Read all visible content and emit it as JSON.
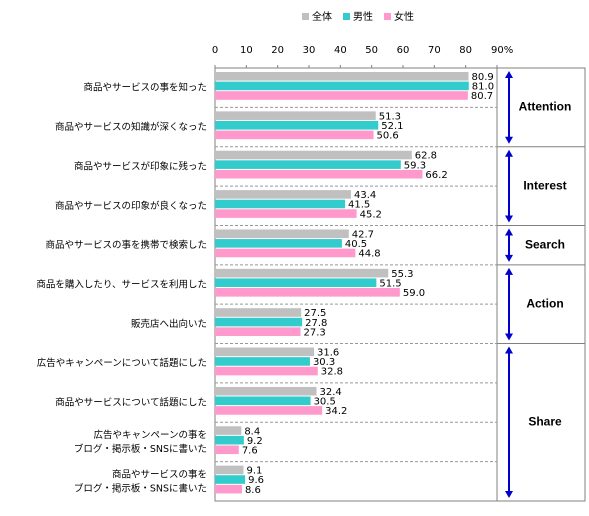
{
  "chart_data": {
    "type": "bar",
    "orientation": "horizontal",
    "categories": [
      "商品やサービスの事を知った",
      "商品やサービスの知識が深くなった",
      "商品やサービスが印象に残った",
      "商品やサービスの印象が良くなった",
      "商品やサービスの事を携帯で検索した",
      "商品を購入したり、サービスを利用した",
      "販売店へ出向いた",
      "広告やキャンペーンについて話題にした",
      "商品やサービスについて話題にした",
      "広告やキャンペーンの事を\nブログ・掲示板・SNSに書いた",
      "商品やサービスの事を\nブログ・掲示板・SNSに書いた"
    ],
    "series": [
      {
        "name": "全体",
        "color": "#c0c0c0",
        "label_color": "#000000",
        "values": [
          80.9,
          51.3,
          62.8,
          43.4,
          42.7,
          55.3,
          27.5,
          31.6,
          32.4,
          8.4,
          9.1
        ],
        "value_labels": [
          "80.9",
          "51.3",
          "62.8",
          "43.4",
          "42.7",
          "55.3",
          "27.5",
          "31.6",
          "32.4",
          "8.4",
          "9.1"
        ]
      },
      {
        "name": "男性",
        "color": "#33cccc",
        "label_color": "#0000cc",
        "values": [
          81.0,
          52.1,
          59.3,
          41.5,
          40.5,
          51.5,
          27.8,
          30.3,
          30.5,
          9.2,
          9.6
        ],
        "value_labels": [
          "81.0",
          "52.1",
          "59.3",
          "41.5",
          "40.5",
          "51.5",
          "27.8",
          "30.3",
          "30.5",
          "9.2",
          "9.6"
        ]
      },
      {
        "name": "女性",
        "color": "#ff99cc",
        "label_color": "#cc0000",
        "values": [
          80.7,
          50.6,
          66.2,
          45.2,
          44.8,
          59.0,
          27.3,
          32.8,
          34.2,
          7.6,
          8.6
        ],
        "value_labels": [
          "80.7",
          "50.6",
          "66.2",
          "45.2",
          "44.8",
          "59.0",
          "27.3",
          "32.8",
          "34.2",
          "7.6",
          "8.6"
        ]
      }
    ],
    "xlim": [
      0,
      90
    ],
    "xticks": [
      0,
      10,
      20,
      30,
      40,
      50,
      60,
      70,
      80,
      {
        "value": 90,
        "label": "90%"
      }
    ],
    "legend": "top",
    "groups": [
      {
        "label": "Attention",
        "span": 2
      },
      {
        "label": "Interest",
        "span": 2
      },
      {
        "label": "Search",
        "span": 1
      },
      {
        "label": "Action",
        "span": 2
      },
      {
        "label": "Share",
        "span": 4
      }
    ],
    "group_color": "#0000cc"
  }
}
